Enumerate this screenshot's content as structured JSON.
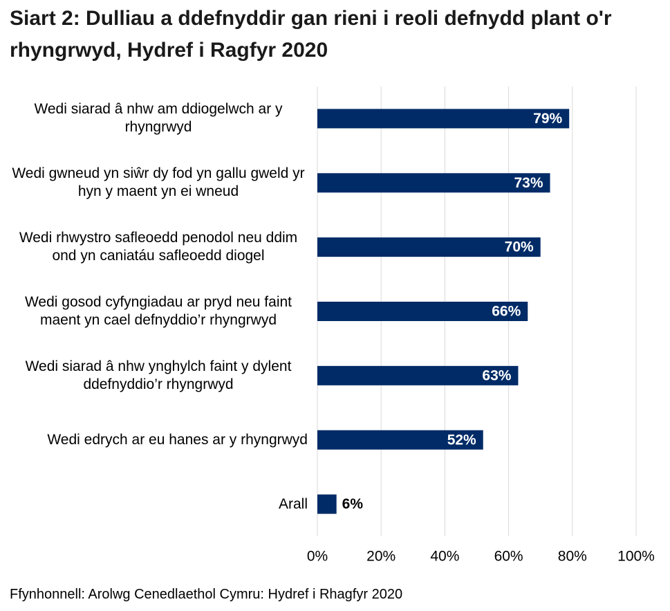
{
  "chart_data": {
    "type": "bar",
    "orientation": "horizontal",
    "title": "Siart 2: Dulliau a ddefnyddir gan rieni i reoli defnydd plant o'r rhyngrwyd, Hydref i Ragfyr 2020",
    "source": "Ffynhonnell: Arolwg Cenedlaethol Cymru: Hydref i Rhagfyr 2020",
    "categories": [
      "Wedi siarad â nhw am ddiogelwch ar y rhyngrwyd",
      "Wedi gwneud yn siŵr dy fod yn gallu gweld yr hyn y maent yn ei wneud",
      "Wedi rhwystro safleoedd penodol neu ddim ond yn caniatáu safleoedd diogel",
      "Wedi gosod cyfyngiadau ar pryd neu faint maent yn cael defnyddio’r rhyngrwyd",
      "Wedi siarad â nhw ynghylch faint y dylent ddefnyddio’r rhyngrwyd",
      "Wedi edrych ar eu hanes ar y rhyngrwyd",
      "Arall"
    ],
    "values": [
      79,
      73,
      70,
      66,
      63,
      52,
      6
    ],
    "value_labels": [
      "79%",
      "73%",
      "70%",
      "66%",
      "63%",
      "52%",
      "6%"
    ],
    "color": "#002b66",
    "xlim": [
      0,
      100
    ],
    "xticks": [
      {
        "value": 0,
        "label": "0%"
      },
      {
        "value": 20,
        "label": "20%"
      },
      {
        "value": 40,
        "label": "40%"
      },
      {
        "value": 60,
        "label": "60%"
      },
      {
        "value": 80,
        "label": "80%"
      },
      {
        "value": 100,
        "label": "100%"
      }
    ],
    "grid": true
  }
}
